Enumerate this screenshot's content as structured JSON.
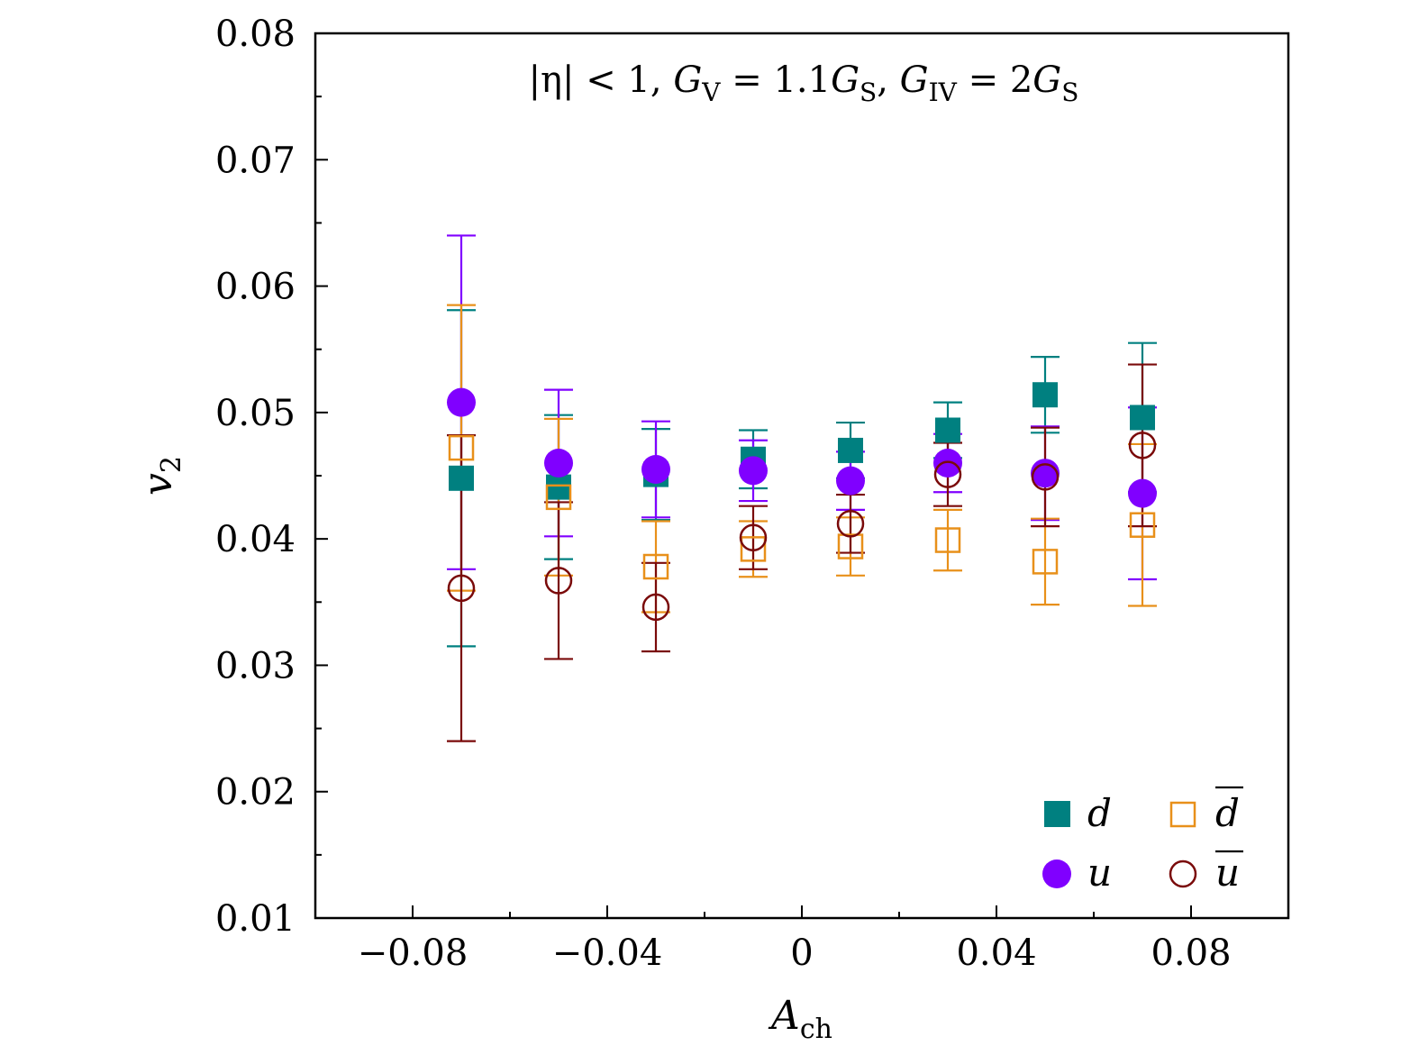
{
  "chart_data": {
    "type": "scatter",
    "title": "|η| < 1, G_V = 1.1G_S, G_IV = 2G_S",
    "title_parts": {
      "eta": "|η| < 1, ",
      "gv": "G",
      "gv_sub": "V",
      "gv_val": " = 1.1",
      "gs1": "G",
      "gs1_sub": "S",
      "sep": ", ",
      "giv": "G",
      "giv_sub": "IV",
      "giv_val": " = 2",
      "gs2": "G",
      "gs2_sub": "S"
    },
    "xlabel": "A",
    "xlabel_sub": "ch",
    "ylabel": "v",
    "ylabel_sub": "2",
    "xlim": [
      -0.1,
      0.1
    ],
    "ylim": [
      0.01,
      0.08
    ],
    "x_ticks": [
      -0.08,
      -0.04,
      0,
      0.04,
      0.08
    ],
    "x_tick_labels": [
      "−0.08",
      "−0.04",
      "0",
      "0.04",
      "0.08"
    ],
    "y_ticks": [
      0.01,
      0.02,
      0.03,
      0.04,
      0.05,
      0.06,
      0.07,
      0.08
    ],
    "y_tick_labels": [
      "0.01",
      "0.02",
      "0.03",
      "0.04",
      "0.05",
      "0.06",
      "0.07",
      "0.08"
    ],
    "legend_position": "bottom-right",
    "series": [
      {
        "name": "d",
        "bar": false,
        "marker": "square-filled",
        "color": "#008080",
        "x": [
          -0.07,
          -0.05,
          -0.03,
          -0.01,
          0.01,
          0.03,
          0.05,
          0.07
        ],
        "y": [
          0.0448,
          0.0441,
          0.0451,
          0.0463,
          0.047,
          0.0486,
          0.0514,
          0.0496
        ],
        "err": [
          0.0133,
          0.0057,
          0.0036,
          0.0023,
          0.0022,
          0.0022,
          0.003,
          0.0059
        ]
      },
      {
        "name": "u",
        "bar": false,
        "marker": "circle-filled",
        "color": "#8000ff",
        "x": [
          -0.07,
          -0.05,
          -0.03,
          -0.01,
          0.01,
          0.03,
          0.05,
          0.07
        ],
        "y": [
          0.0508,
          0.046,
          0.0455,
          0.0454,
          0.0446,
          0.046,
          0.0452,
          0.0436
        ],
        "err": [
          0.0132,
          0.0058,
          0.0038,
          0.0024,
          0.0023,
          0.0023,
          0.0037,
          0.0068
        ]
      },
      {
        "name": "d",
        "bar": true,
        "marker": "square-open",
        "color": "#e8901a",
        "x": [
          -0.07,
          -0.05,
          -0.03,
          -0.01,
          0.01,
          0.03,
          0.05,
          0.07
        ],
        "y": [
          0.0472,
          0.0433,
          0.0378,
          0.0392,
          0.0394,
          0.0399,
          0.0382,
          0.0411
        ],
        "err": [
          0.0113,
          0.0062,
          0.0036,
          0.0022,
          0.0023,
          0.0024,
          0.0034,
          0.0064
        ]
      },
      {
        "name": "u",
        "bar": true,
        "marker": "circle-open",
        "color": "#7a0a0a",
        "x": [
          -0.07,
          -0.05,
          -0.03,
          -0.01,
          0.01,
          0.03,
          0.05,
          0.07
        ],
        "y": [
          0.0361,
          0.0367,
          0.0346,
          0.0401,
          0.0412,
          0.0451,
          0.0449,
          0.0474
        ],
        "err": [
          0.0121,
          0.0062,
          0.0035,
          0.0025,
          0.0023,
          0.0025,
          0.0039,
          0.0064
        ]
      }
    ]
  }
}
